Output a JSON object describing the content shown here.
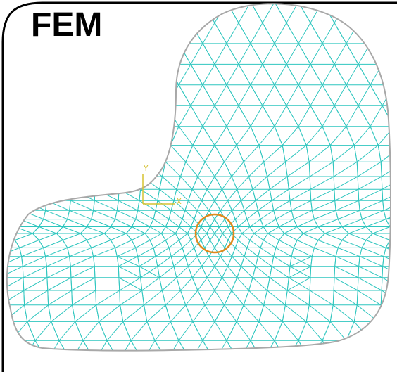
{
  "title": "FEM",
  "axes": {
    "y_label": "Y",
    "x_label": "X"
  },
  "colors": {
    "frame": "#000000",
    "mesh": "#2fc6bf",
    "boundary": "#a8a8a8",
    "marker_circle": "#e08a1c",
    "axis": "#d6c231"
  },
  "mesh_density": {
    "coarse_spacing": 34,
    "fine_spacing": 11
  }
}
